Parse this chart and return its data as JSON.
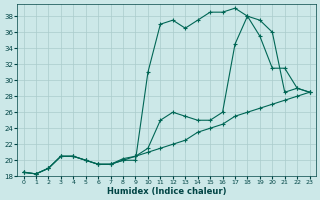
{
  "xlabel": "Humidex (Indice chaleur)",
  "background_color": "#cce8e8",
  "grid_color": "#aacccc",
  "line_color": "#006655",
  "xlim": [
    -0.5,
    23.5
  ],
  "ylim": [
    18,
    39
  ],
  "yticks": [
    18,
    20,
    22,
    24,
    26,
    28,
    30,
    32,
    34,
    36,
    38
  ],
  "xticks": [
    0,
    1,
    2,
    3,
    4,
    5,
    6,
    7,
    8,
    9,
    10,
    11,
    12,
    13,
    14,
    15,
    16,
    17,
    18,
    19,
    20,
    21,
    22,
    23
  ],
  "line1_x": [
    0,
    1,
    2,
    3,
    4,
    5,
    6,
    7,
    8,
    9,
    10,
    11,
    12,
    13,
    14,
    15,
    16,
    17,
    18,
    19,
    20,
    21,
    22,
    23
  ],
  "line1_y": [
    18.5,
    18.3,
    19.0,
    20.5,
    20.5,
    20.0,
    19.5,
    19.5,
    20.0,
    20.0,
    31.0,
    37.0,
    37.5,
    36.5,
    37.5,
    38.5,
    38.5,
    39.0,
    38.0,
    37.5,
    36.0,
    28.5,
    29.0,
    28.5
  ],
  "line2_x": [
    0,
    1,
    2,
    3,
    4,
    5,
    6,
    7,
    8,
    9,
    10,
    11,
    12,
    13,
    14,
    15,
    16,
    17,
    18,
    19,
    20,
    21,
    22,
    23
  ],
  "line2_y": [
    18.5,
    18.3,
    19.0,
    20.5,
    20.5,
    20.0,
    19.5,
    19.5,
    20.0,
    20.5,
    21.5,
    25.0,
    26.0,
    25.5,
    25.0,
    25.0,
    26.0,
    34.5,
    38.0,
    35.5,
    31.5,
    31.5,
    29.0,
    28.5
  ],
  "line3_x": [
    0,
    1,
    2,
    3,
    4,
    5,
    6,
    7,
    8,
    9,
    10,
    11,
    12,
    13,
    14,
    15,
    16,
    17,
    18,
    19,
    20,
    21,
    22,
    23
  ],
  "line3_y": [
    18.5,
    18.3,
    19.0,
    20.5,
    20.5,
    20.0,
    19.5,
    19.5,
    20.2,
    20.5,
    21.0,
    21.5,
    22.0,
    22.5,
    23.5,
    24.0,
    24.5,
    25.5,
    26.0,
    26.5,
    27.0,
    27.5,
    28.0,
    28.5
  ]
}
